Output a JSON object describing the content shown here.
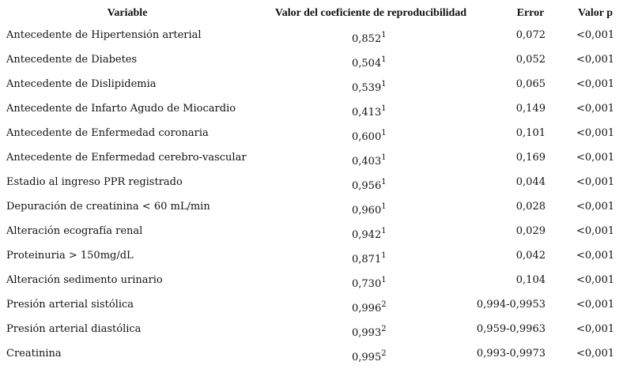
{
  "table": {
    "header": [
      "Variable",
      "Valor del coeficiente de reproducibilidad",
      "Error",
      "Valor p"
    ],
    "rows": [
      {
        "variable": "Antecedente de Hipertensión arterial",
        "coefficient": "0,852",
        "note": "1",
        "error": "0,072",
        "p": "<0,001"
      },
      {
        "variable": "Antecedente de Diabetes",
        "coefficient": "0,504",
        "note": "1",
        "error": "0,052",
        "p": "<0,001"
      },
      {
        "variable": "Antecedente de Dislipidemia",
        "coefficient": "0,539",
        "note": "1",
        "error": "0,065",
        "p": "<0,001"
      },
      {
        "variable": "Antecedente de Infarto Agudo de Miocardio",
        "coefficient": "0,413",
        "note": "1",
        "error": "0,149",
        "p": "<0,001"
      },
      {
        "variable": "Antecedente de Enfermedad coronaria",
        "coefficient": "0,600",
        "note": "1",
        "error": "0,101",
        "p": "<0,001"
      },
      {
        "variable": "Antecedente de Enfermedad cerebro-vascular",
        "coefficient": "0,403",
        "note": "1",
        "error": "0,169",
        "p": "<0,001"
      },
      {
        "variable": "Estadio al ingreso PPR registrado",
        "coefficient": "0,956",
        "note": "1",
        "error": "0,044",
        "p": "<0,001"
      },
      {
        "variable": "Depuración de creatinina < 60 mL/min",
        "coefficient": "0,960",
        "note": "1",
        "error": "0,028",
        "p": "<0,001"
      },
      {
        "variable": "Alteración ecografía renal",
        "coefficient": "0,942",
        "note": "1",
        "error": "0,029",
        "p": "<0,001"
      },
      {
        "variable": "Proteinuria > 150mg/dL",
        "coefficient": "0,871",
        "note": "1",
        "error": "0,042",
        "p": "<0,001"
      },
      {
        "variable": "Alteración sedimento urinario",
        "coefficient": "0,730",
        "note": "1",
        "error": "0,104",
        "p": "<0,001"
      },
      {
        "variable": "Presión arterial sistólica",
        "coefficient": "0,996",
        "note": "2",
        "error": "0,994-0,9953",
        "p": "<0,001"
      },
      {
        "variable": "Presión arterial diastólica",
        "coefficient": "0,993",
        "note": "2",
        "error": "0,959-0,9963",
        "p": "<0,001"
      },
      {
        "variable": "Creatinina",
        "coefficient": "0,995",
        "note": "2",
        "error": "0,993-0,9973",
        "p": "<0,001"
      }
    ]
  }
}
